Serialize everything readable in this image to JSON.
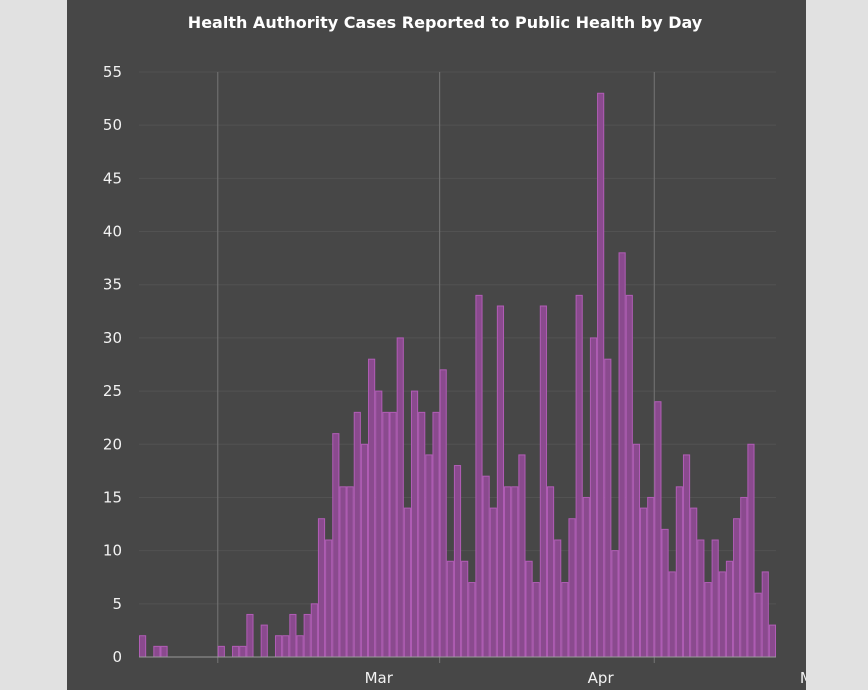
{
  "chart_data": {
    "type": "bar",
    "title": "Health Authority Cases Reported to Public Health by Day",
    "xlabel": "",
    "ylabel": "",
    "ylim": [
      0,
      55
    ],
    "yticks": [
      0,
      5,
      10,
      15,
      20,
      25,
      30,
      35,
      40,
      45,
      50,
      55
    ],
    "x_tick_labels": [
      {
        "label": "Mar",
        "day_index": 33
      },
      {
        "label": "Apr",
        "day_index": 64
      },
      {
        "label": "May",
        "day_index": 94
      }
    ],
    "month_boundaries": [
      10,
      41,
      71
    ],
    "values": [
      2,
      0,
      1,
      1,
      0,
      0,
      0,
      0,
      0,
      0,
      0,
      1,
      0,
      1,
      1,
      4,
      0,
      3,
      0,
      2,
      2,
      4,
      2,
      4,
      5,
      13,
      11,
      21,
      16,
      16,
      23,
      20,
      28,
      25,
      23,
      23,
      30,
      14,
      25,
      23,
      19,
      23,
      27,
      9,
      18,
      9,
      7,
      34,
      17,
      14,
      33,
      16,
      16,
      19,
      9,
      7,
      33,
      16,
      11,
      7,
      13,
      34,
      15,
      30,
      53,
      28,
      10,
      38,
      34,
      20,
      14,
      15,
      24,
      12,
      8,
      16,
      19,
      14,
      11,
      7,
      11,
      8,
      9,
      13,
      15,
      20,
      6,
      8,
      3
    ]
  }
}
